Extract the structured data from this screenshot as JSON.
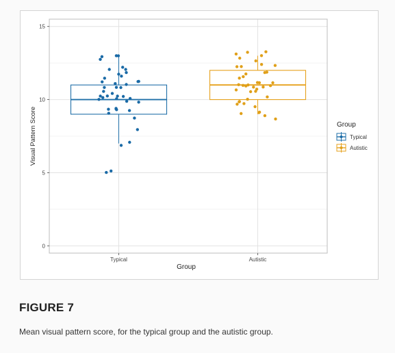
{
  "figure": {
    "label": "FIGURE 7",
    "caption": "Mean visual pattern score, for the typical group and the autistic group."
  },
  "chart_data": {
    "type": "box",
    "xlabel": "Group",
    "ylabel": "Visual Pattern Score",
    "categories": [
      "Typical",
      "Autistic"
    ],
    "ylim": [
      -0.5,
      15.5
    ],
    "yticks": [
      0,
      5,
      10,
      15
    ],
    "grid": true,
    "legend": {
      "title": "Group",
      "position": "right",
      "entries": [
        "Typical",
        "Autistic"
      ]
    },
    "series": [
      {
        "name": "Typical",
        "color": "#1f6fa8",
        "point_color": "#1a6aa6",
        "box": {
          "q1": 9,
          "median": 10,
          "q3": 11,
          "whisker_low": 7,
          "whisker_high": 13
        },
        "points": [
          13,
          12.9,
          13,
          12.8,
          12.2,
          12.1,
          12,
          11.7,
          11.8,
          11.6,
          11.4,
          11.3,
          11.2,
          11.2,
          11.1,
          11,
          10.9,
          10.8,
          10.8,
          10.6,
          10.4,
          10.3,
          10.3,
          10.2,
          10.2,
          10.1,
          10.1,
          10,
          10,
          9.9,
          9.8,
          9.4,
          9.4,
          9.3,
          9.3,
          9.2,
          9.1,
          8.8,
          8,
          7.1,
          6.8,
          5.1,
          5
        ]
      },
      {
        "name": "Autistic",
        "color": "#e6a11c",
        "point_color": "#e0a01a",
        "box": {
          "q1": 10,
          "median": 11,
          "q3": 12,
          "whisker_low": 9,
          "whisker_high": 13
        },
        "points": [
          13.3,
          13.3,
          13.1,
          13,
          12.9,
          12.7,
          12.4,
          12.3,
          12.3,
          12.2,
          11.9,
          11.9,
          11.8,
          11.5,
          11.4,
          11.2,
          11.1,
          11.1,
          11,
          11,
          10.9,
          10.9,
          10.9,
          10.8,
          10.8,
          10.7,
          10.7,
          10.6,
          10.6,
          10.2,
          10,
          9.9,
          9.8,
          9.7,
          9.7,
          9.5,
          9.2,
          9.1,
          9.1,
          8.9,
          8.7
        ]
      }
    ]
  }
}
